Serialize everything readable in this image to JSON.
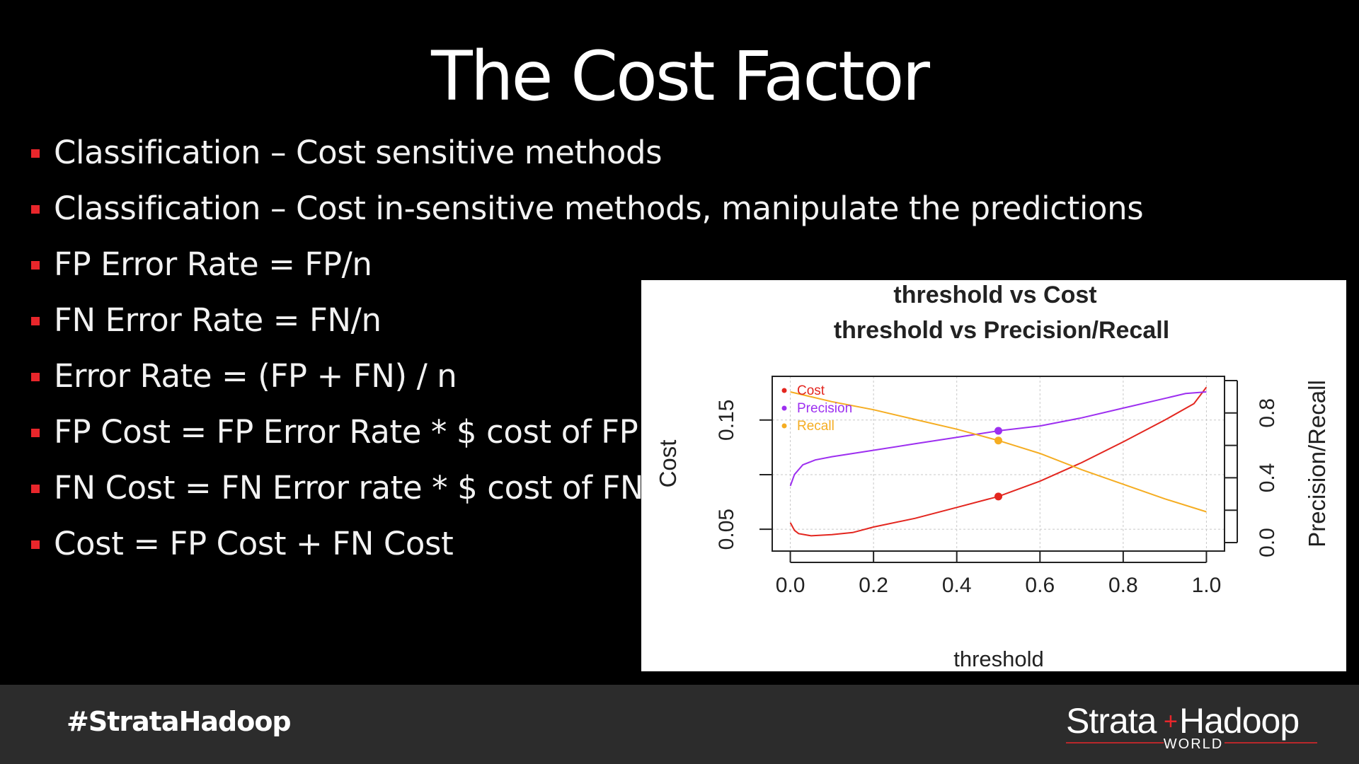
{
  "slide": {
    "title": "The Cost Factor",
    "bullets": [
      "Classification – Cost sensitive methods",
      "Classification – Cost in-sensitive methods, manipulate the predictions",
      "FP Error Rate = FP/n",
      "FN Error Rate = FN/n",
      "Error Rate = (FP + FN) / n",
      "FP Cost = FP Error Rate * $ cost of FP",
      "FN Cost = FN Error rate * $ cost of FN",
      "Cost = FP Cost + FN Cost"
    ],
    "bullet_color": "#e8262b"
  },
  "footer": {
    "hashtag": "#StrataHadoop",
    "logo_text": "Strata+Hadoop",
    "logo_subtext": "WORLD",
    "logo_accent": "#e8262b"
  },
  "chart_data": {
    "type": "line",
    "title": "threshold vs Cost",
    "subtitle": "threshold vs Precision/Recall",
    "xlabel": "threshold",
    "ylabel": "Cost",
    "y2label": "Precision/Recall",
    "xlim": [
      0.0,
      1.0
    ],
    "ylim": [
      0.03,
      0.19
    ],
    "y2lim": [
      0.0,
      1.0
    ],
    "xticks": [
      "0.0",
      "0.2",
      "0.4",
      "0.6",
      "0.8",
      "1.0"
    ],
    "yticks": [
      "0.05",
      "0.15"
    ],
    "y2ticks": [
      "0.0",
      "0.4",
      "0.8"
    ],
    "grid": true,
    "legend_position": "top-left",
    "series": [
      {
        "name": "Cost",
        "axis": "left",
        "color": "#e3261f",
        "x": [
          0.0,
          0.01,
          0.02,
          0.05,
          0.1,
          0.15,
          0.2,
          0.3,
          0.4,
          0.5,
          0.6,
          0.7,
          0.8,
          0.9,
          0.97,
          1.0
        ],
        "values": [
          0.056,
          0.049,
          0.046,
          0.044,
          0.045,
          0.047,
          0.052,
          0.06,
          0.07,
          0.08,
          0.094,
          0.111,
          0.13,
          0.15,
          0.165,
          0.18
        ],
        "marker": {
          "x": 0.5,
          "value": 0.08
        }
      },
      {
        "name": "Precision",
        "axis": "right",
        "color": "#9d2ff0",
        "x": [
          0.0,
          0.01,
          0.03,
          0.06,
          0.1,
          0.2,
          0.3,
          0.4,
          0.5,
          0.6,
          0.7,
          0.8,
          0.9,
          0.95,
          1.0
        ],
        "values": [
          0.35,
          0.42,
          0.48,
          0.51,
          0.53,
          0.57,
          0.61,
          0.65,
          0.69,
          0.72,
          0.77,
          0.83,
          0.89,
          0.92,
          0.93
        ],
        "marker": {
          "x": 0.5,
          "value": 0.69
        }
      },
      {
        "name": "Recall",
        "axis": "right",
        "color": "#f5ad22",
        "x": [
          0.0,
          0.1,
          0.2,
          0.3,
          0.4,
          0.5,
          0.6,
          0.7,
          0.8,
          0.9,
          1.0
        ],
        "values": [
          0.93,
          0.87,
          0.82,
          0.76,
          0.7,
          0.63,
          0.55,
          0.45,
          0.36,
          0.27,
          0.19
        ],
        "marker": {
          "x": 0.5,
          "value": 0.63
        }
      }
    ]
  }
}
